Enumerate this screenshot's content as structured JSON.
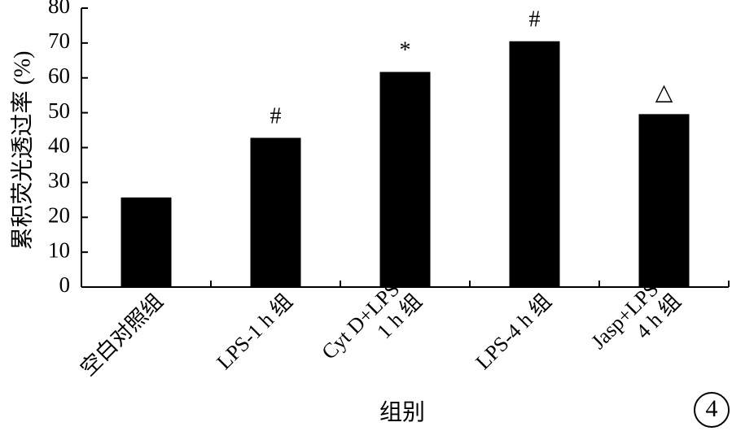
{
  "chart_data": {
    "type": "bar",
    "title": "",
    "xlabel": "组别",
    "ylabel": "累积荧光透过率 (%)",
    "ylim": [
      0,
      80
    ],
    "yticks": [
      "0",
      "10",
      "20",
      "30",
      "40",
      "50",
      "60",
      "70",
      "80"
    ],
    "categories": [
      [
        "空白对照组"
      ],
      [
        "LPS-1 h 组"
      ],
      [
        "Cyt D+LPS-",
        "1 h 组"
      ],
      [
        "LPS-4 h 组"
      ],
      [
        "Jasp+LPS-",
        "4 h 组"
      ]
    ],
    "values": [
      25.7,
      42.8,
      61.7,
      70.5,
      49.6
    ],
    "marks": [
      "",
      "#",
      "*",
      "#",
      "△"
    ],
    "bar_color": "#000000",
    "grid": false,
    "legend": "none"
  },
  "figure_badge": "4"
}
